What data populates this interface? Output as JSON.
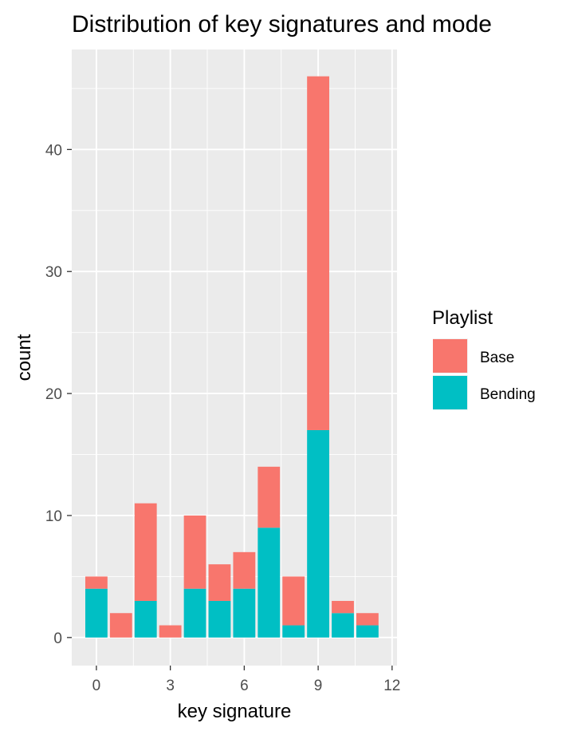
{
  "chart_data": {
    "type": "bar",
    "stacked": true,
    "title": "Distribution of key signatures and mode",
    "xlabel": "key signature",
    "ylabel": "count",
    "xlim": [
      -1,
      12.2
    ],
    "ylim": [
      -2.3,
      48.2
    ],
    "xticks": [
      0,
      3,
      6,
      9,
      12
    ],
    "yticks": [
      0,
      10,
      20,
      30,
      40
    ],
    "x": [
      0,
      1,
      2,
      3,
      4,
      5,
      6,
      7,
      8,
      9,
      10,
      11
    ],
    "series": [
      {
        "name": "Bending",
        "color": "#00BFC4",
        "values": [
          4,
          0,
          3,
          0,
          4,
          3,
          4,
          9,
          1,
          17,
          2,
          1
        ]
      },
      {
        "name": "Base",
        "color": "#F8766D",
        "values": [
          1,
          2,
          8,
          1,
          6,
          3,
          3,
          5,
          4,
          29,
          1,
          1
        ]
      }
    ],
    "legend": {
      "title": "Playlist",
      "position": "right",
      "entries": [
        {
          "label": "Base",
          "color": "#F8766D"
        },
        {
          "label": "Bending",
          "color": "#00BFC4"
        }
      ]
    },
    "panel_background": "#EBEBEB",
    "grid": true
  }
}
